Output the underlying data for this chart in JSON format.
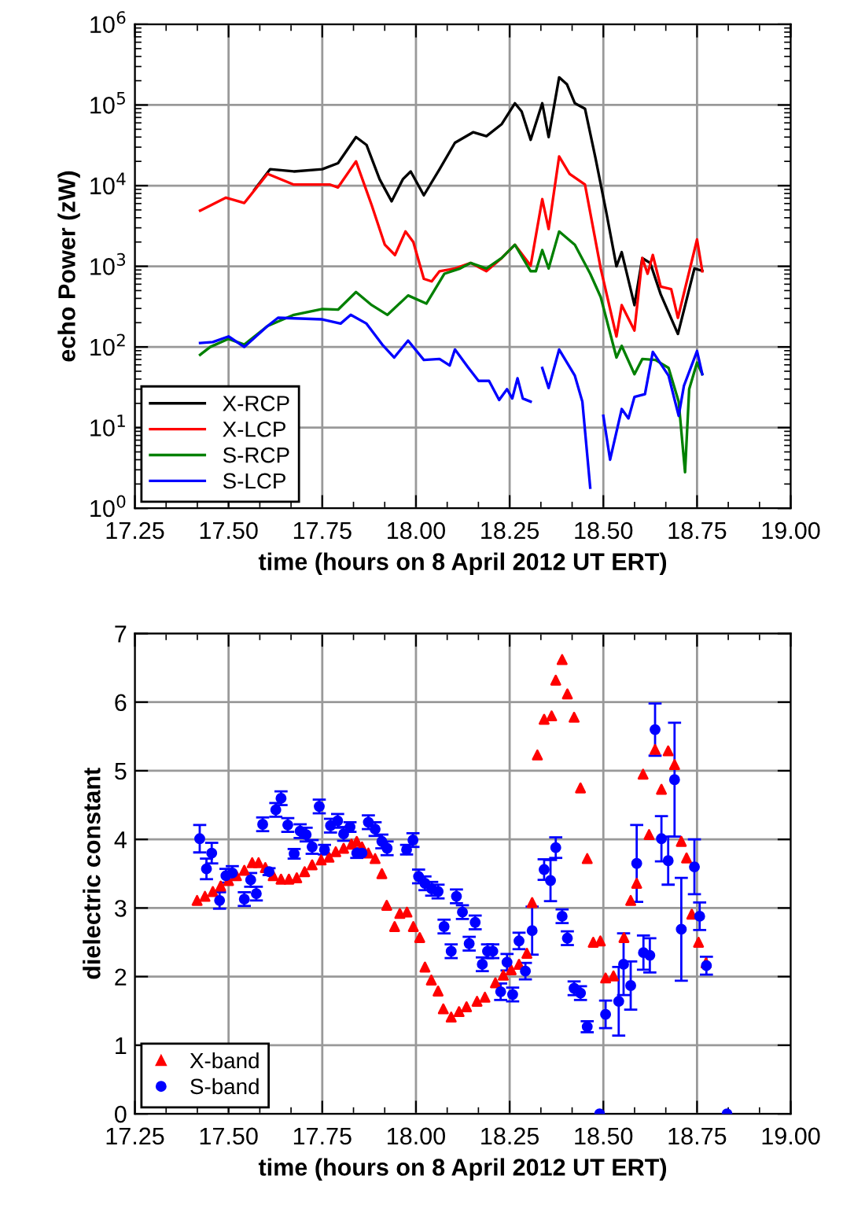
{
  "chart_data": [
    {
      "type": "line",
      "xlabel": "time (hours on 8 April 2012 UT ERT)",
      "ylabel": "echo Power (zW)",
      "log": "y",
      "grid": true,
      "legend": "bottom left",
      "line_style": "solid",
      "marker": "none",
      "xlim": [
        17.25,
        19.0
      ],
      "xticks": [
        17.25,
        {
          "value": 17.5,
          "label": "17.50"
        },
        17.75,
        {
          "value": 18.0,
          "label": "18.00"
        },
        18.25,
        {
          "value": 18.5,
          "label": "18.50"
        },
        18.75,
        {
          "value": 19.0,
          "label": "19.00"
        }
      ],
      "ylim": [
        1,
        1000000
      ],
      "yticks": [
        {
          "value": 1,
          "label": "10$^{0}$"
        },
        {
          "value": 10,
          "label": "10$^{1}$"
        },
        {
          "value": 100,
          "label": "10$^{2}$"
        },
        {
          "value": 1000,
          "label": "10$^{3}$"
        },
        {
          "value": 10000,
          "label": "10$^{4}$"
        },
        {
          "value": 100000,
          "label": "10$^{5}$"
        },
        {
          "value": 1000000,
          "label": "10$^{6}$"
        }
      ],
      "series": [
        {
          "name": "X-RCP",
          "color": "#000000",
          "x": [
            17.569,
            17.611,
            17.674,
            17.75,
            17.792,
            17.84,
            17.868,
            17.903,
            17.935,
            17.965,
            17.986,
            18.021,
            18.063,
            18.104,
            18.153,
            18.188,
            18.229,
            18.264,
            18.282,
            18.306,
            18.337,
            18.354,
            18.382,
            18.403,
            18.424,
            18.451,
            18.479,
            18.507,
            18.535,
            18.549,
            18.583,
            18.604,
            18.625,
            18.653,
            18.699,
            18.743,
            18.764
          ],
          "values": [
            8900,
            16000,
            15000,
            16000,
            19000,
            40000,
            32000,
            12000,
            6400,
            12000,
            15000,
            7600,
            16000,
            34000,
            46000,
            41000,
            58000,
            105000,
            83000,
            37000,
            105000,
            40000,
            220000,
            180000,
            105000,
            90000,
            22000,
            4900,
            1000,
            1500,
            330,
            1260,
            1100,
            450,
            145,
            940,
            880
          ]
        },
        {
          "name": "X-LCP",
          "color": "#ff0000",
          "x": [
            17.424,
            17.493,
            17.542,
            17.604,
            17.674,
            17.771,
            17.792,
            17.84,
            17.882,
            17.917,
            17.944,
            17.972,
            17.993,
            18.021,
            18.042,
            18.063,
            18.104,
            18.146,
            18.188,
            18.229,
            18.264,
            18.306,
            18.337,
            18.354,
            18.382,
            18.41,
            18.451,
            18.493,
            18.535,
            18.549,
            18.583,
            18.604,
            18.618,
            18.632,
            18.653,
            18.681,
            18.699,
            18.75,
            18.764
          ],
          "values": [
            4900,
            7100,
            6100,
            14000,
            10300,
            10300,
            9500,
            20000,
            5700,
            1850,
            1380,
            2700,
            2000,
            700,
            650,
            870,
            940,
            1100,
            870,
            1270,
            1850,
            1020,
            6800,
            2900,
            23000,
            14000,
            10300,
            940,
            135,
            330,
            160,
            1260,
            810,
            1380,
            560,
            520,
            230,
            2150,
            870
          ]
        },
        {
          "name": "S-RCP",
          "color": "#008000",
          "x": [
            17.424,
            17.451,
            17.5,
            17.542,
            17.604,
            17.674,
            17.75,
            17.792,
            17.84,
            17.882,
            17.924,
            17.979,
            18.028,
            18.076,
            18.118,
            18.146,
            18.188,
            18.229,
            18.264,
            18.306,
            18.32,
            18.337,
            18.354,
            18.382,
            18.424,
            18.465,
            18.493,
            18.535,
            18.549,
            18.583,
            18.604,
            18.639,
            18.674,
            18.701,
            18.718,
            18.729,
            18.75,
            18.764
          ],
          "values": [
            80,
            100,
            126,
            107,
            182,
            250,
            295,
            290,
            480,
            330,
            250,
            435,
            345,
            810,
            940,
            1100,
            940,
            1270,
            1850,
            870,
            870,
            1590,
            940,
            2700,
            1850,
            810,
            415,
            74,
            103,
            46,
            71,
            69,
            55,
            21,
            2.8,
            30,
            64,
            46
          ]
        },
        {
          "name": "S-LCP",
          "color": "#0000ff",
          "x": [
            17.424,
            17.458,
            17.5,
            17.542,
            17.604,
            17.632,
            17.75,
            17.799,
            17.826,
            17.868,
            17.91,
            17.942,
            17.979,
            18.021,
            18.063,
            18.09,
            18.104,
            18.139,
            18.167,
            18.195,
            18.222,
            18.243,
            18.257,
            18.271,
            18.285,
            18.306,
            18.32,
            18.337,
            18.354,
            18.382,
            18.424,
            18.444,
            18.465,
            18.48,
            18.5,
            18.518,
            18.549,
            18.567,
            18.583,
            18.611,
            18.632,
            18.674,
            18.701,
            18.715,
            18.75,
            18.764
          ],
          "values": [
            112,
            115,
            135,
            100,
            182,
            230,
            220,
            195,
            250,
            195,
            107,
            74,
            120,
            69,
            71,
            59,
            93,
            56,
            38,
            38,
            22,
            30,
            23,
            41,
            23,
            21,
            null,
            55,
            31,
            93,
            44,
            21,
            1.8,
            null,
            14,
            4.0,
            17,
            13,
            24,
            26,
            87,
            44,
            14,
            33,
            89,
            46
          ]
        }
      ]
    },
    {
      "type": "scatter",
      "xlabel": "time (hours on 8 April 2012 UT ERT)",
      "ylabel": "dielectric constant",
      "grid": true,
      "legend": "bottom left",
      "xlim": [
        17.25,
        19.0
      ],
      "xticks": [
        17.25,
        {
          "value": 17.5,
          "label": "17.50"
        },
        17.75,
        {
          "value": 18.0,
          "label": "18.00"
        },
        18.25,
        {
          "value": 18.5,
          "label": "18.50"
        },
        18.75,
        {
          "value": 19.0,
          "label": "19.00"
        }
      ],
      "ylim": [
        0,
        7
      ],
      "yticks": [
        0,
        1,
        2,
        3,
        4,
        5,
        6,
        7
      ],
      "series": [
        {
          "name": "X-band",
          "color": "#ff0000",
          "marker": "triangle",
          "x": [
            17.416,
            17.437,
            17.458,
            17.479,
            17.5,
            17.521,
            17.542,
            17.563,
            17.58,
            17.598,
            17.619,
            17.64,
            17.661,
            17.682,
            17.703,
            17.723,
            17.747,
            17.768,
            17.786,
            17.807,
            17.828,
            17.842,
            17.856,
            17.873,
            17.891,
            17.909,
            17.922,
            17.943,
            17.957,
            17.976,
            17.993,
            18.01,
            18.024,
            18.041,
            18.059,
            18.073,
            18.094,
            18.115,
            18.135,
            18.163,
            18.184,
            18.212,
            18.233,
            18.254,
            18.275,
            18.296,
            18.31,
            18.324,
            18.342,
            18.362,
            18.373,
            18.39,
            18.404,
            18.422,
            18.439,
            18.457,
            18.473,
            18.492,
            18.506,
            18.527,
            18.555,
            18.573,
            18.589,
            18.606,
            18.622,
            18.638,
            18.655,
            18.673,
            18.69,
            18.708,
            18.722,
            18.736,
            18.754,
            18.774
          ],
          "values": [
            3.11,
            3.17,
            3.24,
            3.32,
            3.4,
            3.47,
            3.55,
            3.66,
            3.66,
            3.59,
            3.47,
            3.42,
            3.42,
            3.44,
            3.53,
            3.63,
            3.7,
            3.74,
            3.82,
            3.87,
            3.93,
            3.97,
            3.89,
            3.8,
            3.72,
            3.5,
            3.04,
            2.73,
            2.92,
            2.94,
            2.73,
            2.57,
            2.14,
            1.95,
            1.79,
            1.53,
            1.41,
            1.49,
            1.56,
            1.64,
            1.7,
            1.91,
            2.02,
            2.1,
            2.18,
            2.34,
            3.08,
            5.23,
            5.75,
            5.8,
            6.32,
            6.62,
            6.12,
            5.78,
            4.75,
            3.72,
            2.5,
            2.52,
            1.98,
            2.01,
            2.57,
            3.11,
            3.36,
            4.95,
            4.07,
            5.31,
            4.73,
            5.29,
            5.09,
            3.97,
            3.73,
            2.91,
            2.5,
            2.2
          ]
        },
        {
          "name": "S-band",
          "color": "#0000ff",
          "marker": "circle",
          "x": [
            17.423,
            17.441,
            17.455,
            17.476,
            17.493,
            17.51,
            17.542,
            17.559,
            17.574,
            17.591,
            17.608,
            17.626,
            17.64,
            17.658,
            17.675,
            17.691,
            17.707,
            17.723,
            17.742,
            17.756,
            17.772,
            17.791,
            17.807,
            17.824,
            17.842,
            17.856,
            17.873,
            17.891,
            17.909,
            17.923,
            17.975,
            17.992,
            18.007,
            18.024,
            18.042,
            18.059,
            18.075,
            18.094,
            18.108,
            18.124,
            18.142,
            18.158,
            18.177,
            18.191,
            18.205,
            18.226,
            18.243,
            18.258,
            18.275,
            18.292,
            18.31,
            18.342,
            18.359,
            18.373,
            18.39,
            18.404,
            18.422,
            18.439,
            18.457,
            18.49,
            18.506,
            18.541,
            18.554,
            18.573,
            18.589,
            18.607,
            18.624,
            18.638,
            18.655,
            18.673,
            18.69,
            18.708,
            18.743,
            18.757,
            18.775,
            18.83
          ],
          "values": [
            4.01,
            3.57,
            3.8,
            3.11,
            3.47,
            3.51,
            3.13,
            3.41,
            3.21,
            4.22,
            3.53,
            4.43,
            4.6,
            4.21,
            3.79,
            4.12,
            4.07,
            3.89,
            4.48,
            3.85,
            4.2,
            4.27,
            4.08,
            4.18,
            3.8,
            3.8,
            4.25,
            4.15,
            3.97,
            3.87,
            3.85,
            3.99,
            3.46,
            3.36,
            3.28,
            3.24,
            2.73,
            2.37,
            3.17,
            2.94,
            2.48,
            2.79,
            2.18,
            2.37,
            2.37,
            1.78,
            2.21,
            1.74,
            2.52,
            2.08,
            2.67,
            3.56,
            3.4,
            3.88,
            2.88,
            2.56,
            1.83,
            1.76,
            1.27,
            0,
            1.45,
            1.64,
            2.18,
            1.87,
            3.65,
            2.35,
            2.31,
            5.6,
            4.01,
            3.69,
            4.87,
            2.69,
            3.6,
            2.88,
            2.16,
            0
          ],
          "errors": [
            0.2,
            0.15,
            0.15,
            0.12,
            0.1,
            0.1,
            0.1,
            0.1,
            0.1,
            0.1,
            0.05,
            0.1,
            0.1,
            0.1,
            0.07,
            0.1,
            0.1,
            0.1,
            0.1,
            0.07,
            0.1,
            0.1,
            0.1,
            0.07,
            0.07,
            null,
            0.1,
            0.1,
            0.1,
            0.1,
            0.07,
            0.1,
            0.1,
            0.1,
            0.1,
            0.1,
            0.1,
            0.1,
            0.1,
            0.1,
            0.1,
            0.1,
            0.1,
            0.1,
            0.1,
            0.12,
            0.12,
            0.1,
            0.12,
            0.12,
            0.35,
            0.15,
            0.3,
            0.15,
            0.1,
            0.1,
            0.1,
            0.1,
            0.08,
            null,
            0.2,
            0.5,
            0.45,
            0.35,
            0.56,
            0.25,
            0.25,
            0.38,
            0.33,
            0.35,
            0.83,
            0.75,
            0.4,
            0.2,
            0.13,
            null
          ]
        }
      ]
    }
  ]
}
